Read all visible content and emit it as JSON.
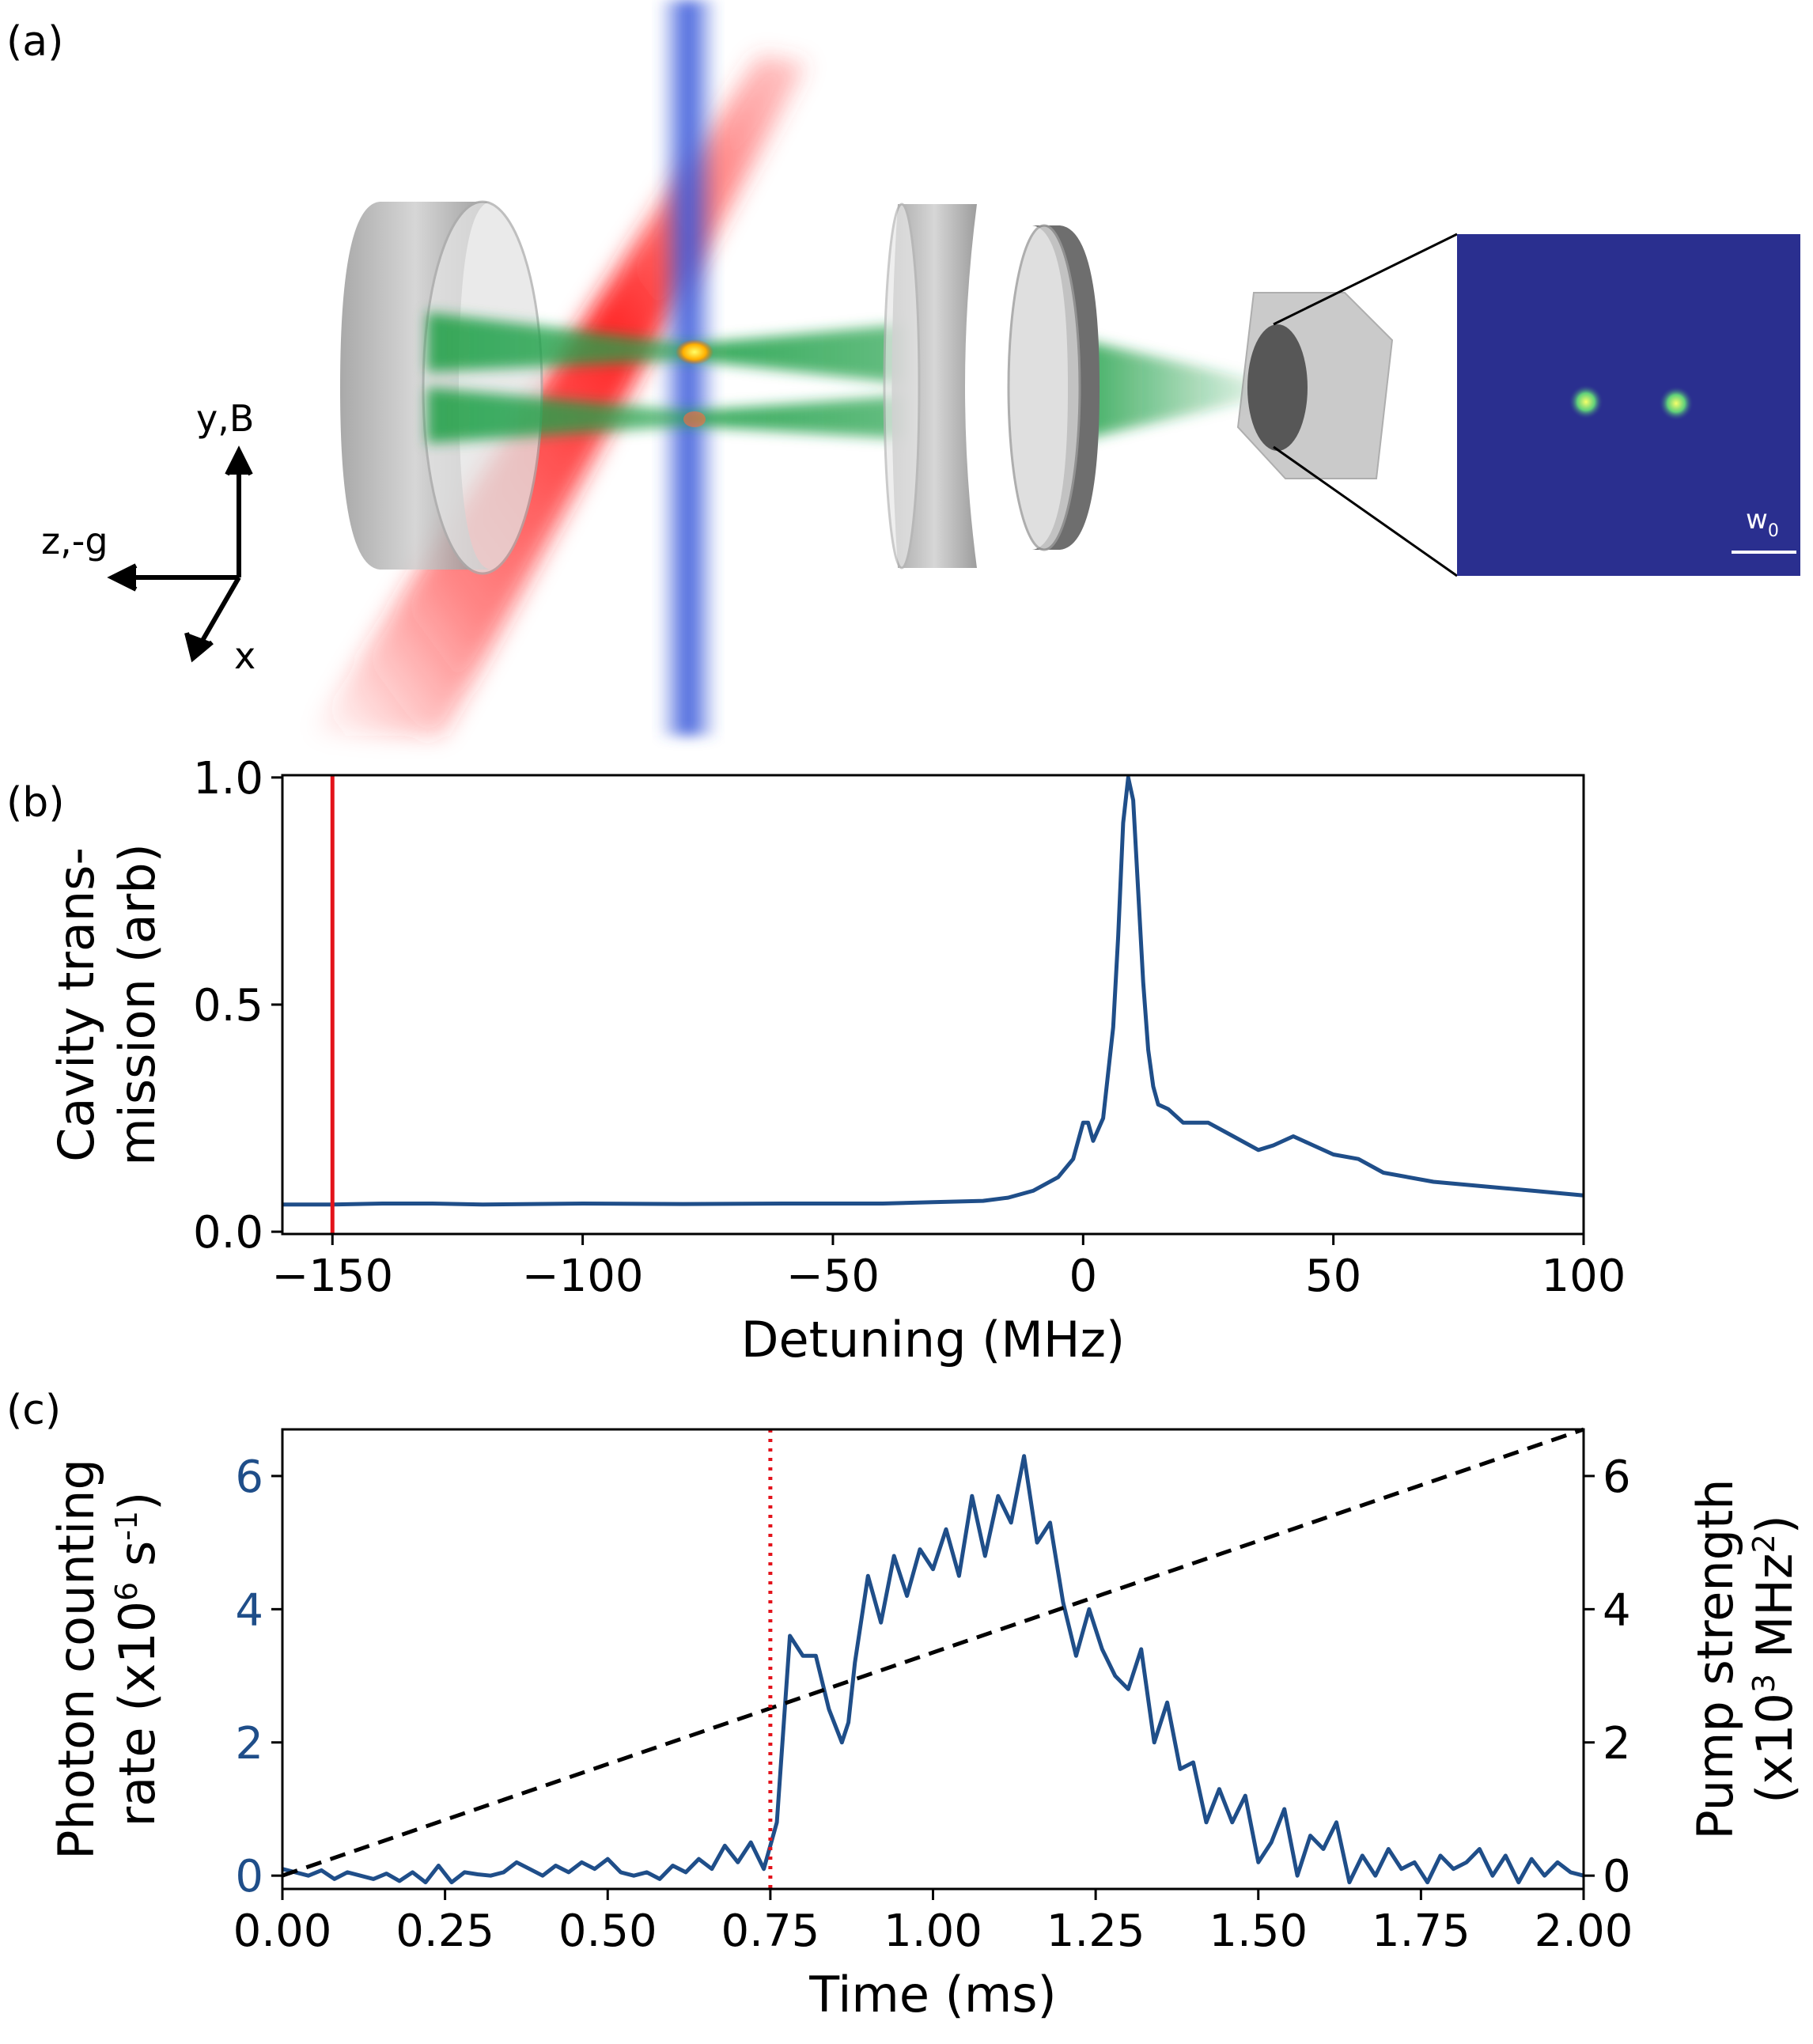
{
  "panels": {
    "a": {
      "label": "(a)",
      "axes_labels": {
        "y": "y,B",
        "z": "z,-g",
        "x": "x"
      },
      "inset": {
        "scale_label_main": "w",
        "scale_label_sub": "0"
      }
    },
    "b": {
      "label": "(b)"
    },
    "c": {
      "label": "(c)"
    }
  },
  "colors": {
    "data_blue": "#1f4e89",
    "marker_red": "#e3131b",
    "pump_black": "#000000",
    "beam_green": "#22a14a",
    "beam_red": "#ff1a1a",
    "beam_blue": "#3b5bdb",
    "inset_bg": "#2a2f8f",
    "spot": "#d8f04a"
  },
  "chart_data": [
    {
      "id": "b",
      "type": "line",
      "xlabel": "Detuning (MHz)",
      "ylabel_line1": "Cavity trans-",
      "ylabel_line2": "mission (arb)",
      "xlim": [
        -160,
        100
      ],
      "ylim": [
        -0.005,
        1.005
      ],
      "xticks": [
        -150,
        -100,
        -50,
        0,
        50,
        100
      ],
      "xtick_labels": [
        "−150",
        "−100",
        "−50",
        "0",
        "50",
        "100"
      ],
      "yticks": [
        0.0,
        0.5,
        1.0
      ],
      "ytick_labels": [
        "0.0",
        "0.5",
        "1.0"
      ],
      "vline": {
        "x": -150,
        "color": "#e3131b"
      },
      "series": [
        {
          "name": "transmission",
          "x": [
            -160,
            -150,
            -140,
            -130,
            -120,
            -100,
            -80,
            -60,
            -40,
            -30,
            -20,
            -15,
            -10,
            -5,
            -2,
            0,
            1,
            2,
            4,
            6,
            7,
            8,
            9,
            10,
            11,
            12,
            13,
            14,
            15,
            17,
            20,
            25,
            30,
            35,
            38,
            42,
            46,
            50,
            55,
            60,
            70,
            80,
            90,
            100
          ],
          "y": [
            0.06,
            0.06,
            0.062,
            0.062,
            0.06,
            0.062,
            0.061,
            0.062,
            0.062,
            0.065,
            0.068,
            0.075,
            0.09,
            0.12,
            0.16,
            0.24,
            0.24,
            0.2,
            0.25,
            0.45,
            0.65,
            0.9,
            1.0,
            0.95,
            0.75,
            0.55,
            0.4,
            0.32,
            0.28,
            0.27,
            0.24,
            0.24,
            0.21,
            0.18,
            0.19,
            0.21,
            0.19,
            0.17,
            0.16,
            0.13,
            0.11,
            0.1,
            0.09,
            0.08
          ]
        }
      ]
    },
    {
      "id": "c",
      "type": "line",
      "xlabel": "Time (ms)",
      "ylabel_left_line1": "Photon counting",
      "ylabel_left_line2": "rate (x10",
      "ylabel_left_sup1": "6",
      "ylabel_left_mid": " s",
      "ylabel_left_sup2": "-1",
      "ylabel_left_end": ")",
      "ylabel_right_line1": "Pump strength",
      "ylabel_right_line2": "(x10",
      "ylabel_right_sup1": "3",
      "ylabel_right_mid": " MHz",
      "ylabel_right_sup2": "2",
      "ylabel_right_end": ")",
      "xlim": [
        0,
        2.0
      ],
      "ylim": [
        -0.2,
        6.7
      ],
      "y2lim": [
        -0.2,
        6.7
      ],
      "xticks": [
        0,
        0.25,
        0.5,
        0.75,
        1.0,
        1.25,
        1.5,
        1.75,
        2.0
      ],
      "xtick_labels": [
        "0.00",
        "0.25",
        "0.50",
        "0.75",
        "1.00",
        "1.25",
        "1.50",
        "1.75",
        "2.00"
      ],
      "yticks": [
        0,
        2,
        4,
        6
      ],
      "ytick_labels": [
        "0",
        "2",
        "4",
        "6"
      ],
      "y2ticks": [
        0,
        2,
        4,
        6
      ],
      "y2tick_labels": [
        "0",
        "2",
        "4",
        "6"
      ],
      "vline": {
        "x": 0.75,
        "color": "#e3131b",
        "style": "dotted"
      },
      "series": [
        {
          "name": "photon counting rate",
          "axis": "left",
          "x": [
            0.0,
            0.02,
            0.04,
            0.06,
            0.08,
            0.1,
            0.12,
            0.14,
            0.16,
            0.18,
            0.2,
            0.22,
            0.24,
            0.26,
            0.28,
            0.3,
            0.32,
            0.34,
            0.36,
            0.38,
            0.4,
            0.42,
            0.44,
            0.46,
            0.48,
            0.5,
            0.52,
            0.54,
            0.56,
            0.58,
            0.6,
            0.62,
            0.64,
            0.66,
            0.68,
            0.7,
            0.72,
            0.74,
            0.76,
            0.78,
            0.8,
            0.82,
            0.84,
            0.86,
            0.87,
            0.88,
            0.9,
            0.92,
            0.94,
            0.96,
            0.98,
            1.0,
            1.02,
            1.04,
            1.06,
            1.08,
            1.1,
            1.12,
            1.14,
            1.16,
            1.18,
            1.2,
            1.22,
            1.24,
            1.26,
            1.28,
            1.3,
            1.32,
            1.34,
            1.36,
            1.38,
            1.4,
            1.42,
            1.44,
            1.46,
            1.48,
            1.5,
            1.52,
            1.54,
            1.56,
            1.58,
            1.6,
            1.62,
            1.64,
            1.66,
            1.68,
            1.7,
            1.72,
            1.74,
            1.76,
            1.78,
            1.8,
            1.82,
            1.84,
            1.86,
            1.88,
            1.9,
            1.92,
            1.94,
            1.96,
            1.98,
            2.0
          ],
          "y": [
            0.1,
            0.05,
            0.0,
            0.08,
            -0.05,
            0.05,
            0.0,
            -0.05,
            0.03,
            -0.08,
            0.05,
            -0.1,
            0.15,
            -0.1,
            0.05,
            0.02,
            0.0,
            0.05,
            0.2,
            0.1,
            0.0,
            0.15,
            0.05,
            0.2,
            0.1,
            0.25,
            0.05,
            0.0,
            0.05,
            -0.05,
            0.15,
            0.05,
            0.25,
            0.1,
            0.45,
            0.2,
            0.5,
            0.1,
            0.8,
            3.6,
            3.3,
            3.3,
            2.5,
            2.0,
            2.3,
            3.2,
            4.5,
            3.8,
            4.8,
            4.2,
            4.9,
            4.6,
            5.2,
            4.5,
            5.7,
            4.8,
            5.7,
            5.3,
            6.3,
            5.0,
            5.3,
            4.1,
            3.3,
            4.0,
            3.4,
            3.0,
            2.8,
            3.4,
            2.0,
            2.6,
            1.6,
            1.7,
            0.8,
            1.3,
            0.8,
            1.2,
            0.2,
            0.5,
            1.0,
            0.0,
            0.6,
            0.4,
            0.8,
            -0.1,
            0.3,
            0.0,
            0.4,
            0.1,
            0.2,
            -0.1,
            0.3,
            0.1,
            0.2,
            0.4,
            0.0,
            0.3,
            -0.1,
            0.25,
            0.0,
            0.2,
            0.05,
            0.0
          ]
        },
        {
          "name": "pump strength",
          "axis": "right",
          "style": "dashed",
          "x": [
            0.0,
            2.0
          ],
          "y": [
            0.0,
            6.7
          ]
        }
      ]
    }
  ]
}
